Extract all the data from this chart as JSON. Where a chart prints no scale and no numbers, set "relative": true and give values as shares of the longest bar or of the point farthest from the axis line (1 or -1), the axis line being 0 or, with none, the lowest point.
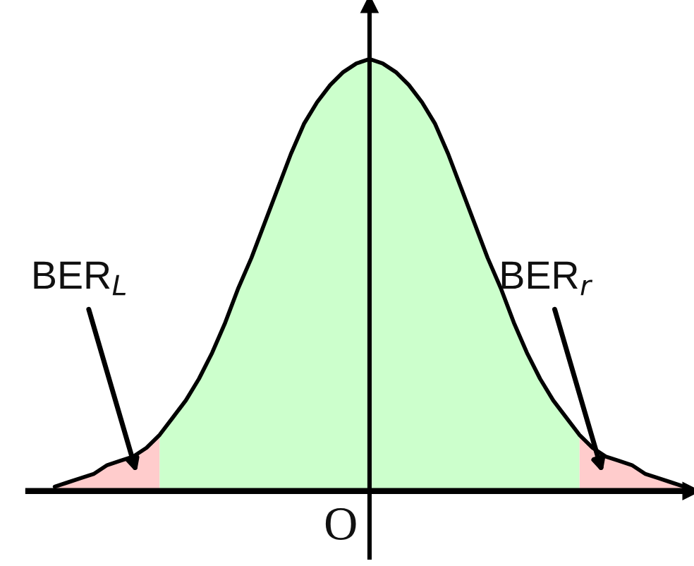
{
  "chart_data": {
    "type": "area",
    "relative": true,
    "categories": [
      null,
      null,
      null,
      null,
      null,
      null,
      null,
      null,
      null,
      null,
      null,
      null,
      null,
      null,
      null,
      null,
      null,
      null,
      null,
      null,
      null,
      null,
      null,
      null,
      null,
      null,
      null,
      null,
      null,
      null,
      null,
      null,
      null,
      null,
      null,
      null,
      null,
      null,
      null,
      null,
      null,
      null,
      null,
      null,
      null,
      null,
      null,
      null,
      null
    ],
    "series": [
      {
        "color": "#ffcccc",
        "values": [
          0.01,
          0.02,
          0.03,
          0.04,
          0.06,
          0.07,
          0.08,
          0.1,
          0.13,
          null,
          null,
          null,
          null,
          null,
          null,
          null,
          null,
          null,
          null,
          null,
          null,
          null,
          null,
          null,
          null,
          null,
          null,
          null,
          null,
          null,
          null,
          null,
          null,
          null,
          null,
          null,
          null,
          null,
          null,
          null,
          0.13,
          0.1,
          0.08,
          0.07,
          0.06,
          0.04,
          0.03,
          0.02,
          0.01
        ]
      },
      {
        "color": "#ccffcc",
        "values": [
          null,
          null,
          null,
          null,
          null,
          null,
          null,
          null,
          0.13,
          0.17,
          0.21,
          0.26,
          0.32,
          0.39,
          0.47,
          0.54,
          0.62,
          0.7,
          0.78,
          0.85,
          0.9,
          0.94,
          0.97,
          0.99,
          1,
          0.99,
          0.97,
          0.94,
          0.9,
          0.85,
          0.78,
          0.7,
          0.62,
          0.54,
          0.47,
          0.39,
          0.32,
          0.26,
          0.21,
          0.17,
          0.13,
          null,
          null,
          null,
          null,
          null,
          null,
          null,
          null
        ]
      },
      {
        "type": "line",
        "color": "#000000",
        "values": [
          0.01,
          0.02,
          0.03,
          0.04,
          0.06,
          0.07,
          0.08,
          0.1,
          0.13,
          0.17,
          0.21,
          0.26,
          0.32,
          0.39,
          0.47,
          0.54,
          0.62,
          0.7,
          0.78,
          0.85,
          0.9,
          0.94,
          0.97,
          0.99,
          1,
          0.99,
          0.97,
          0.94,
          0.9,
          0.85,
          0.78,
          0.7,
          0.62,
          0.54,
          0.47,
          0.39,
          0.32,
          0.26,
          0.21,
          0.17,
          0.13,
          0.1,
          0.08,
          0.07,
          0.06,
          0.04,
          0.03,
          0.02,
          0.01
        ]
      }
    ],
    "annotations": [
      "BER$_{L}$",
      "BER$_{r}$",
      "O"
    ]
  }
}
